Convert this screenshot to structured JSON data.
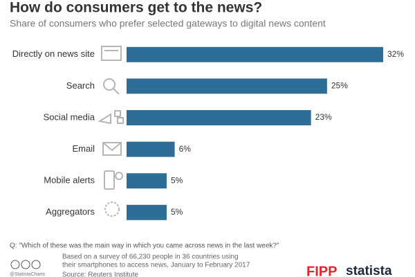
{
  "chart_data": {
    "type": "bar",
    "orientation": "horizontal",
    "title": "How do consumers get to the news?",
    "subtitle": "Share of consumers who prefer selected gateways to digital news content",
    "categories": [
      "Directly on news site",
      "Search",
      "Social media",
      "Email",
      "Mobile alerts",
      "Aggregators"
    ],
    "values": [
      32,
      25,
      23,
      6,
      5,
      5
    ],
    "value_labels": [
      "32%",
      "25%",
      "23%",
      "6%",
      "5%",
      "5%"
    ],
    "color": "#2e6e96",
    "question": "Q: \"Which of these was the main way in which you came across news in the last week?\"",
    "note": [
      "Based on a survey of 66,230 people in 36 countries using",
      "their smartphones to access news, January to February 2017"
    ],
    "source": "Source: Reuters Institute",
    "handle": "@StatistaCharts",
    "logos": [
      "FIPP",
      "statista"
    ]
  }
}
